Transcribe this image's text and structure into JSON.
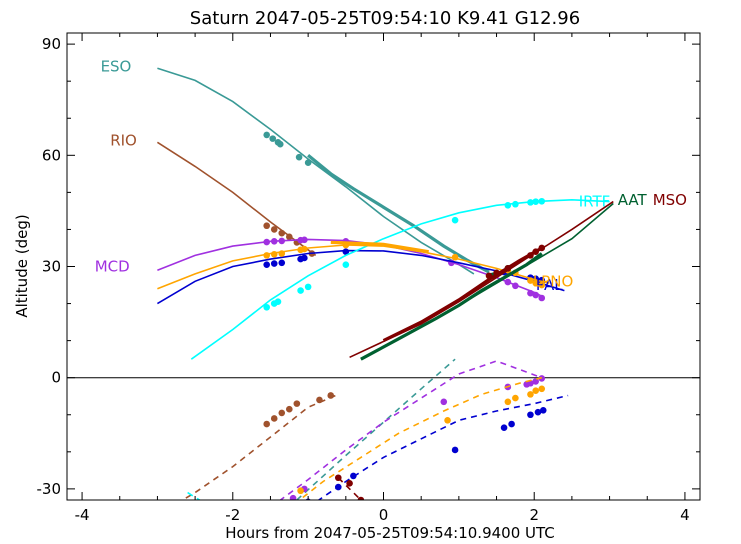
{
  "chart_data": {
    "type": "line",
    "title": "Saturn 2047-05-25T09:54:10  K9.41  G12.96",
    "xlabel": "Hours from 2047-05-25T09:54:10.9400 UTC",
    "ylabel": "Altitude (deg)",
    "xlim": [
      -4.2,
      4.2
    ],
    "ylim": [
      -33,
      93
    ],
    "xticks": [
      -4,
      -2,
      0,
      2,
      4
    ],
    "xtick_labels": [
      "-4",
      "-2",
      "0",
      "2",
      "4"
    ],
    "yticks": [
      -30,
      0,
      30,
      60,
      90
    ],
    "ytick_labels": [
      "-30",
      "0",
      "30",
      "60",
      "90"
    ],
    "zero_line": true,
    "grid": false,
    "series": [
      {
        "name": "ESO",
        "color": "#3a9a96",
        "solid": [
          [
            -3.0,
            83.5
          ],
          [
            -2.5,
            80.2
          ],
          [
            -2.0,
            74.5
          ],
          [
            -1.5,
            67.0
          ],
          [
            -1.0,
            59.0
          ],
          [
            -0.5,
            51.5
          ],
          [
            0.0,
            43.5
          ],
          [
            0.5,
            36.5
          ],
          [
            1.0,
            30.5
          ],
          [
            1.2,
            28.0
          ]
        ],
        "heavy": [
          [
            -1.0,
            60.0
          ],
          [
            -0.7,
            55.0
          ],
          [
            -0.4,
            51.0
          ],
          [
            0.0,
            46.0
          ],
          [
            0.4,
            41.0
          ],
          [
            0.8,
            35.5
          ],
          [
            1.1,
            31.8
          ],
          [
            1.4,
            28.5
          ]
        ],
        "points": [
          [
            -1.55,
            65.5
          ],
          [
            -1.47,
            64.5
          ],
          [
            -1.4,
            63.5
          ],
          [
            -1.37,
            63.0
          ],
          [
            -1.12,
            59.5
          ],
          [
            -1.0,
            58.0
          ]
        ],
        "dashed": [
          [
            -1.15,
            -33.0
          ],
          [
            -0.5,
            -21.0
          ],
          [
            0.0,
            -12.0
          ],
          [
            0.5,
            -3.0
          ],
          [
            0.95,
            5.0
          ]
        ],
        "dash_points": [],
        "label": "ESO",
        "label_pos": [
          -3.55,
          84
        ]
      },
      {
        "name": "RIO",
        "color": "#a0522d",
        "solid": [
          [
            -3.0,
            63.5
          ],
          [
            -2.5,
            57.0
          ],
          [
            -2.0,
            50.0
          ],
          [
            -1.5,
            42.0
          ],
          [
            -1.3,
            39.0
          ],
          [
            -1.1,
            36.0
          ],
          [
            -0.9,
            33.0
          ]
        ],
        "heavy": [],
        "points": [
          [
            -1.55,
            41.0
          ],
          [
            -1.45,
            40.0
          ],
          [
            -1.35,
            39.0
          ],
          [
            -1.25,
            38.0
          ],
          [
            -1.15,
            36.5
          ],
          [
            -0.95,
            33.5
          ]
        ],
        "dashed": [
          [
            -3.0,
            -37.0
          ],
          [
            -2.5,
            -31.0
          ],
          [
            -2.0,
            -24.0
          ],
          [
            -1.5,
            -16.0
          ],
          [
            -1.0,
            -8.0
          ],
          [
            -0.6,
            -4.5
          ]
        ],
        "dash_points": [
          [
            -1.55,
            -12.5
          ],
          [
            -1.45,
            -11.0
          ],
          [
            -1.35,
            -9.5
          ],
          [
            -1.25,
            -8.5
          ],
          [
            -1.15,
            -7.0
          ],
          [
            -0.85,
            -6.0
          ],
          [
            -0.7,
            -4.8
          ]
        ],
        "label": "RIO",
        "label_pos": [
          -3.45,
          64
        ]
      },
      {
        "name": "MCD",
        "color": "#a030e0",
        "solid": [
          [
            -3.0,
            29.0
          ],
          [
            -2.5,
            33.0
          ],
          [
            -2.0,
            35.5
          ],
          [
            -1.5,
            36.8
          ],
          [
            -1.0,
            37.3
          ],
          [
            -0.5,
            37.0
          ],
          [
            0.0,
            35.8
          ],
          [
            0.5,
            33.5
          ],
          [
            1.0,
            30.5
          ],
          [
            1.5,
            27.0
          ],
          [
            2.0,
            23.0
          ],
          [
            2.1,
            22.0
          ]
        ],
        "heavy": [],
        "points": [
          [
            -1.55,
            36.6
          ],
          [
            -1.45,
            36.8
          ],
          [
            -1.35,
            36.9
          ],
          [
            -1.1,
            37.1
          ],
          [
            -1.05,
            37.2
          ],
          [
            -0.5,
            36.8
          ],
          [
            0.9,
            31.0
          ],
          [
            1.65,
            25.8
          ],
          [
            1.75,
            24.8
          ],
          [
            1.95,
            22.8
          ],
          [
            2.02,
            22.3
          ],
          [
            2.1,
            21.5
          ]
        ],
        "dashed": [
          [
            -1.5,
            -35.0
          ],
          [
            -1.0,
            -27.5
          ],
          [
            -0.5,
            -19.5
          ],
          [
            0.0,
            -12.0
          ],
          [
            0.5,
            -5.5
          ],
          [
            1.0,
            1.0
          ],
          [
            1.5,
            4.5
          ],
          [
            2.1,
            0.0
          ]
        ],
        "dash_points": [
          [
            -1.2,
            -32.5
          ],
          [
            -1.05,
            -30.0
          ],
          [
            0.8,
            -6.5
          ],
          [
            1.65,
            -2.5
          ],
          [
            1.9,
            -1.8
          ],
          [
            1.95,
            -1.5
          ],
          [
            2.02,
            -1.0
          ],
          [
            2.1,
            -0.2
          ]
        ],
        "label": "MCD",
        "label_pos": [
          -3.6,
          30
        ]
      },
      {
        "name": "PAL",
        "color": "#0000d0",
        "solid": [
          [
            -3.0,
            20.0
          ],
          [
            -2.5,
            26.0
          ],
          [
            -2.0,
            30.0
          ],
          [
            -1.5,
            32.0
          ],
          [
            -1.0,
            33.5
          ],
          [
            -0.5,
            34.3
          ],
          [
            0.0,
            34.2
          ],
          [
            0.5,
            33.0
          ],
          [
            1.0,
            31.0
          ],
          [
            1.5,
            28.8
          ],
          [
            2.0,
            26.0
          ],
          [
            2.4,
            23.5
          ]
        ],
        "heavy": [],
        "points": [
          [
            -1.55,
            30.5
          ],
          [
            -1.45,
            30.8
          ],
          [
            -1.35,
            31.0
          ],
          [
            -1.1,
            32.0
          ],
          [
            -1.05,
            32.3
          ],
          [
            -0.5,
            34.0
          ],
          [
            1.6,
            28.5
          ],
          [
            1.95,
            27.0
          ],
          [
            2.02,
            26.7
          ],
          [
            2.1,
            26.3
          ]
        ],
        "dashed": [
          [
            -1.0,
            -35.0
          ],
          [
            -0.5,
            -28.0
          ],
          [
            0.0,
            -21.5
          ],
          [
            0.5,
            -16.5
          ],
          [
            1.0,
            -11.5
          ],
          [
            1.5,
            -9.0
          ],
          [
            2.0,
            -7.0
          ],
          [
            2.45,
            -4.8
          ]
        ],
        "dash_points": [
          [
            -1.0,
            -33.5
          ],
          [
            -0.6,
            -29.5
          ],
          [
            -0.4,
            -26.5
          ],
          [
            0.95,
            -19.5
          ],
          [
            1.6,
            -13.5
          ],
          [
            1.7,
            -12.5
          ],
          [
            1.95,
            -10.0
          ],
          [
            2.05,
            -9.3
          ],
          [
            2.12,
            -8.8
          ]
        ],
        "label": "PAL",
        "label_pos": [
          2.2,
          25
        ]
      },
      {
        "name": "IRTF",
        "color": "#00ffff",
        "solid": [
          [
            -2.55,
            5.0
          ],
          [
            -2.0,
            13.0
          ],
          [
            -1.5,
            21.0
          ],
          [
            -1.0,
            27.5
          ],
          [
            -0.5,
            33.0
          ],
          [
            0.0,
            37.5
          ],
          [
            0.5,
            41.5
          ],
          [
            1.0,
            44.5
          ],
          [
            1.5,
            46.5
          ],
          [
            2.0,
            47.5
          ],
          [
            2.5,
            48.0
          ],
          [
            3.0,
            47.5
          ]
        ],
        "heavy": [],
        "points": [
          [
            -1.55,
            19.0
          ],
          [
            -1.45,
            20.0
          ],
          [
            -1.4,
            20.5
          ],
          [
            -1.1,
            23.5
          ],
          [
            -1.0,
            24.5
          ],
          [
            -0.5,
            30.5
          ],
          [
            0.95,
            42.5
          ],
          [
            1.65,
            46.5
          ],
          [
            1.75,
            46.8
          ],
          [
            1.95,
            47.3
          ],
          [
            2.02,
            47.5
          ],
          [
            2.1,
            47.6
          ]
        ],
        "dashed": [
          [
            -2.6,
            -31.0
          ],
          [
            -2.4,
            -33.5
          ]
        ],
        "dash_points": [],
        "label": "IRTF",
        "label_pos": [
          2.8,
          47.5
        ]
      },
      {
        "name": "LPNO",
        "color": "#ffa500",
        "solid": [
          [
            -3.0,
            24.0
          ],
          [
            -2.5,
            28.0
          ],
          [
            -2.0,
            31.5
          ],
          [
            -1.5,
            33.5
          ],
          [
            -1.0,
            35.0
          ],
          [
            -0.5,
            35.8
          ],
          [
            0.0,
            35.5
          ],
          [
            0.5,
            34.0
          ],
          [
            1.0,
            32.0
          ],
          [
            1.5,
            29.5
          ],
          [
            2.0,
            26.5
          ],
          [
            2.2,
            25.5
          ]
        ],
        "heavy": [
          [
            -0.7,
            36.5
          ],
          [
            0.0,
            36.0
          ],
          [
            0.6,
            34.0
          ]
        ],
        "points": [
          [
            -1.55,
            33.0
          ],
          [
            -1.45,
            33.3
          ],
          [
            -1.35,
            33.5
          ],
          [
            -1.1,
            34.5
          ],
          [
            -1.05,
            34.7
          ],
          [
            -0.5,
            35.8
          ],
          [
            0.95,
            32.5
          ],
          [
            1.65,
            29.0
          ],
          [
            1.75,
            28.3
          ],
          [
            1.95,
            26.2
          ],
          [
            2.02,
            25.5
          ],
          [
            2.1,
            25.0
          ]
        ],
        "dashed": [
          [
            -1.3,
            -36.0
          ],
          [
            -0.8,
            -28.0
          ],
          [
            -0.3,
            -21.5
          ],
          [
            0.2,
            -15.0
          ],
          [
            0.8,
            -9.0
          ],
          [
            1.3,
            -4.5
          ],
          [
            1.8,
            -1.5
          ],
          [
            2.1,
            0.0
          ]
        ],
        "dash_points": [
          [
            -1.5,
            -35.0
          ],
          [
            -1.1,
            -30.5
          ],
          [
            0.85,
            -11.5
          ],
          [
            1.65,
            -6.5
          ],
          [
            1.75,
            -5.5
          ],
          [
            1.95,
            -4.5
          ],
          [
            2.02,
            -3.5
          ],
          [
            2.1,
            -3.0
          ]
        ],
        "label": "LPNO",
        "label_pos": [
          2.25,
          26
        ]
      },
      {
        "name": "AAT",
        "color": "#006030",
        "solid": [
          [
            -0.3,
            5.0
          ],
          [
            0.5,
            14.0
          ],
          [
            1.0,
            19.5
          ],
          [
            1.5,
            25.5
          ],
          [
            2.0,
            31.5
          ],
          [
            2.5,
            37.5
          ],
          [
            3.05,
            47.0
          ]
        ],
        "heavy": [
          [
            -0.3,
            5.0
          ],
          [
            0.2,
            10.5
          ],
          [
            0.7,
            16.0
          ],
          [
            1.0,
            19.5
          ],
          [
            1.3,
            23.5
          ],
          [
            1.6,
            27.0
          ],
          [
            1.9,
            30.5
          ],
          [
            2.1,
            33.5
          ]
        ],
        "points": [
          [
            1.45,
            27.5
          ],
          [
            1.65,
            29.5
          ]
        ],
        "dashed": [],
        "dash_points": [],
        "label": "AAT",
        "label_pos": [
          3.3,
          48
        ]
      },
      {
        "name": "MSO",
        "color": "#800000",
        "solid": [
          [
            -0.45,
            5.5
          ],
          [
            0.5,
            14.5
          ],
          [
            1.0,
            20.5
          ],
          [
            1.5,
            27.0
          ],
          [
            2.0,
            33.5
          ],
          [
            2.5,
            40.0
          ],
          [
            3.05,
            47.5
          ]
        ],
        "heavy": [
          [
            0.0,
            10.0
          ],
          [
            0.5,
            15.0
          ],
          [
            1.0,
            21.0
          ],
          [
            1.4,
            26.5
          ],
          [
            1.8,
            31.5
          ],
          [
            2.1,
            35.0
          ]
        ],
        "points": [
          [
            1.4,
            27.5
          ],
          [
            1.5,
            28.3
          ],
          [
            1.65,
            29.5
          ],
          [
            1.95,
            33.0
          ],
          [
            2.02,
            34.0
          ],
          [
            2.1,
            35.0
          ]
        ],
        "dashed": [
          [
            -0.6,
            -27.0
          ],
          [
            -0.3,
            -33.0
          ]
        ],
        "dash_points": [
          [
            -0.6,
            -27.0
          ],
          [
            -0.45,
            -28.5
          ],
          [
            -0.3,
            -33.0
          ]
        ],
        "label": "MSO",
        "label_pos": [
          3.8,
          48
        ]
      }
    ]
  }
}
